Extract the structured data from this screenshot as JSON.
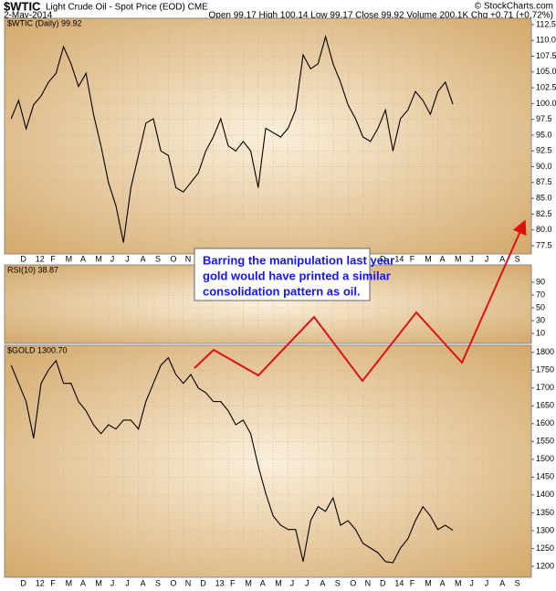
{
  "header": {
    "symbol": "$WTIC",
    "name": "Light Crude Oil - Spot Price (EOD) CME",
    "date": "2-May-2014",
    "quote": "Open 99.17 High 100.14 Low 99.17 Close 99.92 Volume 200.1K Chg +0.71 (+0.72%)",
    "credit": "© StockCharts.com"
  },
  "time_axis": [
    "D",
    "12",
    "F",
    "M",
    "A",
    "M",
    "J",
    "J",
    "A",
    "S",
    "O",
    "N",
    "D",
    "13",
    "F",
    "M",
    "A",
    "M",
    "J",
    "J",
    "A",
    "S",
    "O",
    "N",
    "D",
    "14",
    "F",
    "M",
    "A",
    "M",
    "J",
    "J",
    "A",
    "S"
  ],
  "annotation": [
    "Barring the manipulation last year",
    "gold would have printed a similar",
    "consolidation pattern as oil."
  ],
  "chart_data": [
    {
      "type": "line",
      "legend": "$WTIC (Daily) 99.92",
      "color": "#000000",
      "grid": true,
      "ylim": [
        76.2,
        113.5
      ],
      "yticks": [
        77.5,
        {
          "value": 80,
          "label": "80.0"
        },
        82.5,
        {
          "value": 85,
          "label": "85.0"
        },
        87.5,
        {
          "value": 90,
          "label": "90.0"
        },
        92.5,
        {
          "value": 95,
          "label": "95.0"
        },
        97.5,
        {
          "value": 100,
          "label": "100.0"
        },
        102.5,
        {
          "value": 105,
          "label": "105.0"
        },
        107.5,
        {
          "value": 110,
          "label": "110.0"
        },
        112.5
      ],
      "values": [
        97.6,
        100.5,
        96,
        99.8,
        101.2,
        103.4,
        104.8,
        109,
        106.3,
        102.7,
        104.8,
        98.3,
        93.3,
        87.5,
        83.8,
        78,
        86.7,
        91.8,
        96.9,
        97.6,
        92.5,
        91.8,
        86.7,
        86,
        87.5,
        89,
        92.5,
        94.7,
        97.6,
        93.3,
        92.5,
        94,
        92.5,
        86.7,
        96.1,
        95.4,
        94.7,
        96.1,
        99,
        107.7,
        105.5,
        106.3,
        110.6,
        106.3,
        103.4,
        99.8,
        97.6,
        94.7,
        94,
        96.1,
        99,
        92.5,
        97.6,
        99,
        101.9,
        100.5,
        98.3,
        101.9,
        103.4,
        99.9
      ]
    },
    {
      "type": "line",
      "legend": "RSI(10) 38.87",
      "grid": true,
      "ylim": [
        0,
        100
      ],
      "yticks": [
        10,
        30,
        50,
        70,
        90
      ]
    },
    {
      "type": "line",
      "legend": "$GOLD 1300.70",
      "color": "#000000",
      "grid": true,
      "ylim": [
        1169,
        1820
      ],
      "yticks": [
        1200,
        1250,
        1300,
        1350,
        1400,
        1450,
        1500,
        1550,
        1600,
        1650,
        1700,
        1750,
        1800
      ],
      "values": [
        1764,
        1713,
        1662,
        1559,
        1713,
        1751,
        1777,
        1713,
        1713,
        1662,
        1636,
        1597,
        1572,
        1597,
        1585,
        1610,
        1610,
        1585,
        1662,
        1713,
        1764,
        1785,
        1738,
        1713,
        1738,
        1700,
        1687,
        1662,
        1662,
        1636,
        1597,
        1610,
        1572,
        1482,
        1405,
        1341,
        1315,
        1303,
        1303,
        1213,
        1328,
        1367,
        1354,
        1392,
        1315,
        1328,
        1303,
        1264,
        1251,
        1238,
        1213,
        1210,
        1251,
        1277,
        1328,
        1367,
        1341,
        1303,
        1315,
        1300.7
      ]
    }
  ]
}
